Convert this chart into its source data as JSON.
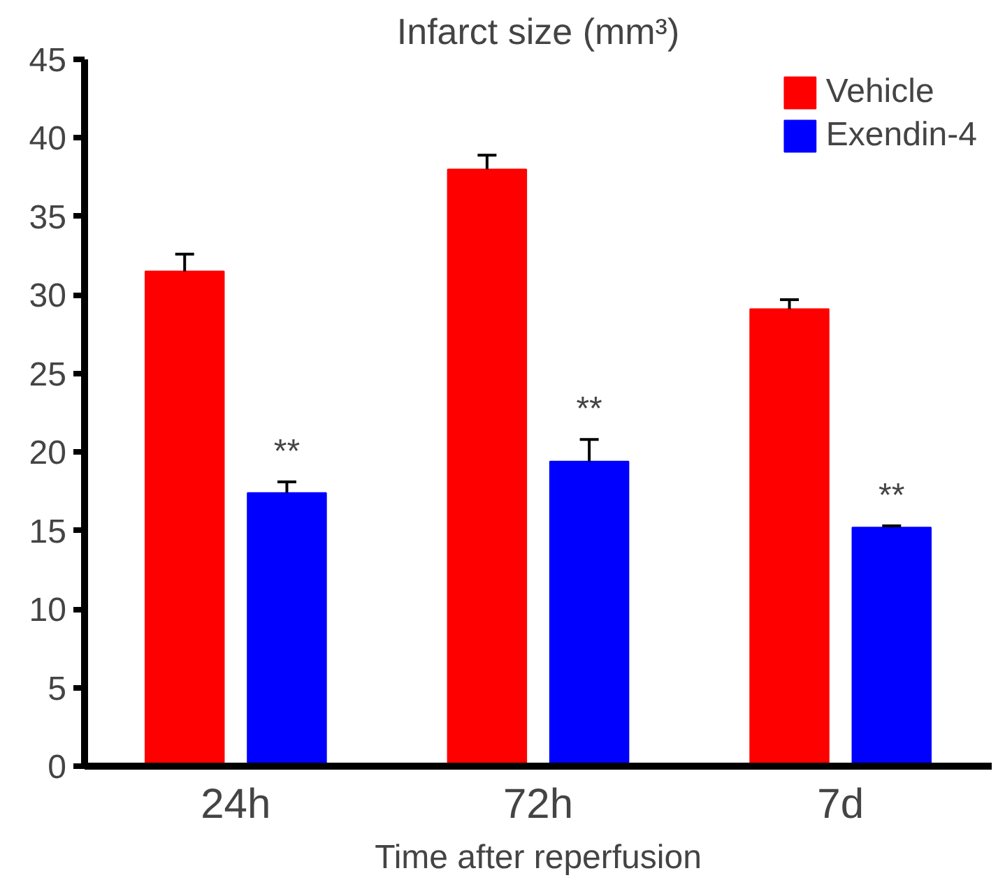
{
  "chart_data": {
    "type": "bar",
    "title": "Infarct size (mm³)",
    "xlabel": "Time after reperfusion",
    "categories": [
      "24h",
      "72h",
      "7d"
    ],
    "series": [
      {
        "name": "Vehicle",
        "color": "#ff0000",
        "values": [
          31.5,
          38.0,
          29.1
        ],
        "errors": [
          [
            31.5,
            32.6
          ],
          [
            38.0,
            38.9
          ],
          [
            29.1,
            29.7
          ]
        ]
      },
      {
        "name": "Exendin-4",
        "color": "#0000ff",
        "values": [
          17.4,
          19.4,
          15.2
        ],
        "errors": [
          [
            17.4,
            18.1
          ],
          [
            19.4,
            20.8
          ],
          [
            15.2,
            15.3
          ]
        ]
      }
    ],
    "ylim": [
      0,
      45
    ],
    "yticks": [
      0,
      5,
      10,
      15,
      20,
      25,
      30,
      35,
      40,
      45
    ],
    "grid": false,
    "legend": "top right",
    "annotations": [
      "**",
      "**",
      "**"
    ]
  }
}
